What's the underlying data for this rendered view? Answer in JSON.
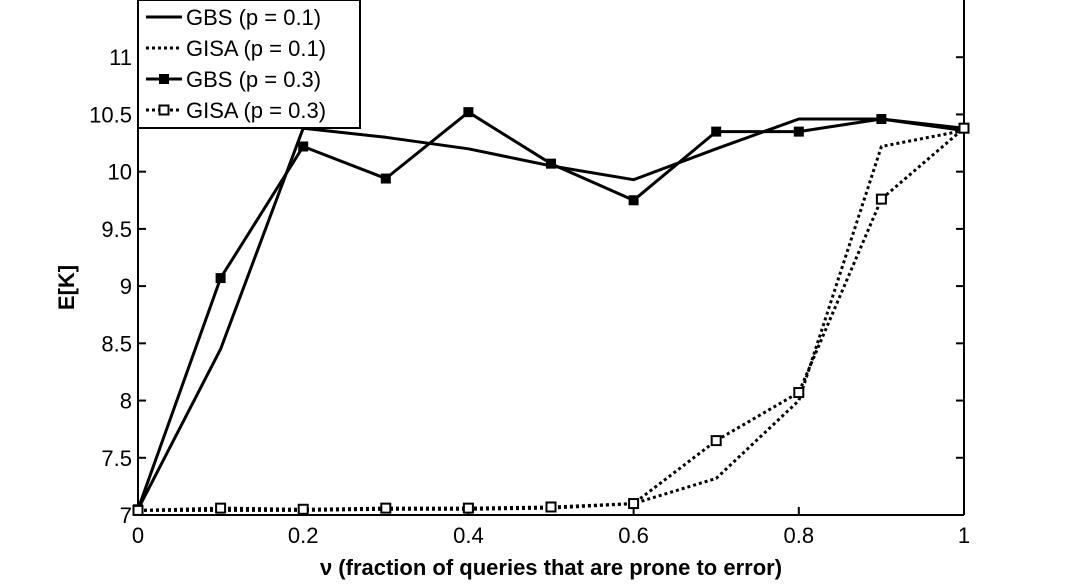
{
  "chart_data": {
    "type": "line",
    "title": "",
    "xlabel": "ν (fraction of queries that are prone to error)",
    "ylabel": "E[K]",
    "xlim": [
      0,
      1
    ],
    "ylim": [
      7,
      11.5
    ],
    "xticks": [
      0,
      0.2,
      0.4,
      0.6,
      0.8,
      1
    ],
    "xtick_labels": [
      "0",
      "0.2",
      "0.4",
      "0.6",
      "0.8",
      "1"
    ],
    "yticks": [
      7,
      7.5,
      8,
      8.5,
      9,
      9.5,
      10,
      10.5,
      11
    ],
    "ytick_labels": [
      "7",
      "7.5",
      "8",
      "8.5",
      "9",
      "9.5",
      "10",
      "10.5",
      "11"
    ],
    "grid": false,
    "legend_position": "top-left",
    "x": [
      0,
      0.1,
      0.2,
      0.3,
      0.4,
      0.5,
      0.6,
      0.7,
      0.8,
      0.9,
      1.0
    ],
    "series": [
      {
        "name": "GBS (p = 0.1)",
        "style": "solid",
        "marker": "none",
        "color": "#000000",
        "values": [
          7.05,
          8.45,
          10.38,
          10.3,
          10.2,
          10.05,
          9.93,
          10.2,
          10.46,
          10.46,
          10.36
        ]
      },
      {
        "name": "GISA (p = 0.1)",
        "style": "dotted",
        "marker": "none",
        "color": "#000000",
        "values": [
          7.04,
          7.04,
          7.04,
          7.05,
          7.05,
          7.06,
          7.1,
          7.32,
          8.0,
          10.22,
          10.36
        ]
      },
      {
        "name": "GBS (p = 0.3)",
        "style": "solid",
        "marker": "filled-square",
        "color": "#000000",
        "values": [
          7.05,
          9.07,
          10.22,
          9.94,
          10.52,
          10.07,
          9.75,
          10.35,
          10.35,
          10.46,
          10.38
        ]
      },
      {
        "name": "GISA (p = 0.3)",
        "style": "dotted",
        "marker": "open-square",
        "color": "#000000",
        "values": [
          7.04,
          7.06,
          7.05,
          7.06,
          7.06,
          7.07,
          7.1,
          7.65,
          8.07,
          9.76,
          10.38
        ]
      }
    ]
  }
}
